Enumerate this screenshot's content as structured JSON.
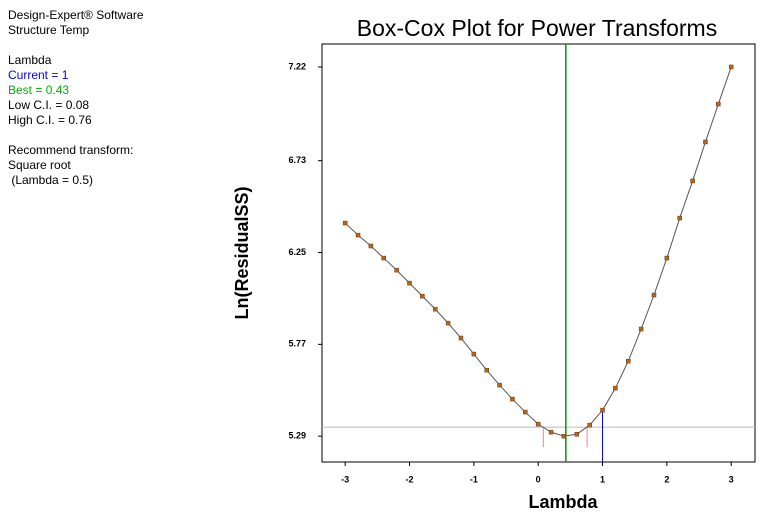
{
  "sidebar": {
    "software": "Design-Expert® Software",
    "response": "Structure Temp",
    "heading": "Lambda",
    "recommend": "Recommend transform:",
    "transform": "Square root",
    "transform_lambda": " (Lambda = 0.5)"
  },
  "chart_data": {
    "type": "line",
    "title": "Box-Cox Plot for Power Transforms",
    "x_label": "Lambda",
    "y_label": "Ln(ResidualSS)",
    "x": [
      -3,
      -2.8,
      -2.6,
      -2.4,
      -2.2,
      -2,
      -1.8,
      -1.6,
      -1.4,
      -1.2,
      -1,
      -0.8,
      -0.6,
      -0.4,
      -0.2,
      0,
      0.2,
      0.4,
      0.6,
      0.8,
      1,
      1.2,
      1.4,
      1.6,
      1.8,
      2,
      2.2,
      2.4,
      2.6,
      2.8,
      3
    ],
    "series": [
      {
        "color": "#b5651d",
        "values": [
          6.404,
          6.341,
          6.284,
          6.221,
          6.158,
          6.09,
          6.022,
          5.954,
          5.881,
          5.803,
          5.719,
          5.635,
          5.557,
          5.484,
          5.416,
          5.353,
          5.311,
          5.29,
          5.3,
          5.348,
          5.426,
          5.541,
          5.682,
          5.85,
          6.028,
          6.221,
          6.43,
          6.624,
          6.828,
          7.026,
          7.22
        ]
      }
    ],
    "lambda_lines": [
      {
        "name": "Current = 1",
        "value": 1,
        "color": "#0000ff"
      },
      {
        "name": "Best = 0.43",
        "value": 0.43,
        "color": "#009900"
      },
      {
        "name": "Low C.I. = 0.08",
        "value": 0.08,
        "color": "#ff8080"
      },
      {
        "name": "High C.I. = 0.76",
        "value": 0.76,
        "color": "#ff8080"
      }
    ],
    "threshold": 5.337,
    "xlim": [
      -3.36,
      3.37
    ],
    "xticks": [
      -3,
      -2,
      -1,
      0,
      1,
      2,
      3
    ],
    "ylim": [
      5.155,
      7.34
    ],
    "yticks": [
      5.29,
      5.77,
      6.25,
      6.73,
      7.22
    ]
  }
}
